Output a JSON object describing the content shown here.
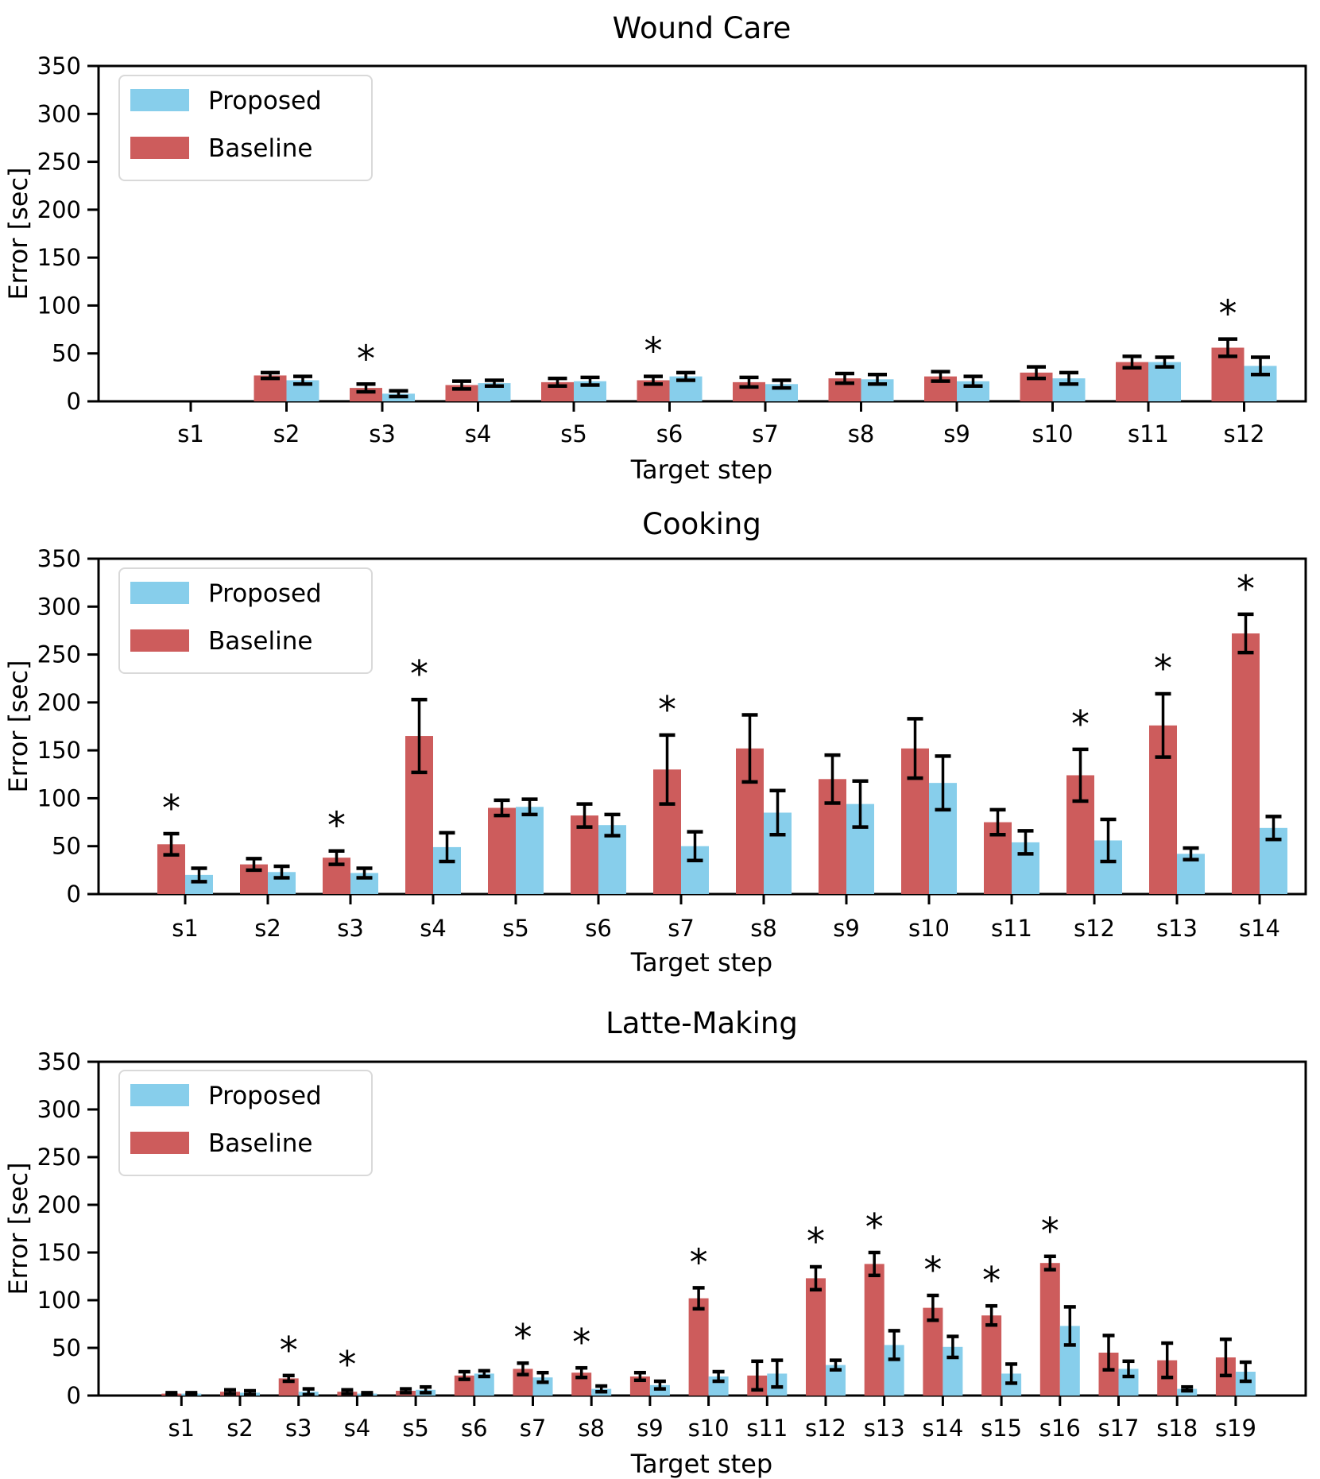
{
  "figure": {
    "ylabel": "Error [sec]",
    "xlabel": "Target step",
    "legend": {
      "proposed": "Proposed",
      "baseline": "Baseline"
    },
    "colors": {
      "proposed": "#87CEEB",
      "baseline": "#CD5C5C",
      "axis": "#000000"
    },
    "y_ticks": [
      0,
      50,
      100,
      150,
      200,
      250,
      300,
      350
    ],
    "significance_marker": "*"
  },
  "chart_data": [
    {
      "type": "bar",
      "title": "Wound Care",
      "xlabel": "Target step",
      "ylabel": "Error [sec]",
      "ylim": [
        0,
        350
      ],
      "grid": false,
      "legend_position": "upper left",
      "categories": [
        "s1",
        "s2",
        "s3",
        "s4",
        "s5",
        "s6",
        "s7",
        "s8",
        "s9",
        "s10",
        "s11",
        "s12"
      ],
      "series": [
        {
          "name": "Baseline",
          "color": "#CD5C5C",
          "values": [
            0,
            27,
            14,
            17,
            20,
            22,
            20,
            24,
            26,
            30,
            41,
            56
          ],
          "errors": [
            0,
            3,
            4,
            4,
            4,
            4,
            5,
            5,
            5,
            6,
            6,
            9
          ]
        },
        {
          "name": "Proposed",
          "color": "#87CEEB",
          "values": [
            0,
            22,
            8,
            19,
            21,
            26,
            18,
            23,
            21,
            24,
            41,
            37
          ],
          "errors": [
            0,
            4,
            3,
            3,
            4,
            4,
            4,
            5,
            5,
            6,
            5,
            9
          ]
        }
      ],
      "significant_steps": [
        "s3",
        "s6",
        "s12"
      ]
    },
    {
      "type": "bar",
      "title": "Cooking",
      "xlabel": "Target step",
      "ylabel": "Error [sec]",
      "ylim": [
        0,
        350
      ],
      "grid": false,
      "legend_position": "upper left",
      "categories": [
        "s1",
        "s2",
        "s3",
        "s4",
        "s5",
        "s6",
        "s7",
        "s8",
        "s9",
        "s10",
        "s11",
        "s12",
        "s13",
        "s14"
      ],
      "series": [
        {
          "name": "Baseline",
          "color": "#CD5C5C",
          "values": [
            52,
            31,
            38,
            165,
            90,
            82,
            130,
            152,
            120,
            152,
            75,
            124,
            176,
            272
          ],
          "errors": [
            11,
            6,
            7,
            38,
            8,
            12,
            36,
            35,
            25,
            31,
            13,
            27,
            33,
            20
          ]
        },
        {
          "name": "Proposed",
          "color": "#87CEEB",
          "values": [
            20,
            23,
            22,
            49,
            91,
            72,
            50,
            85,
            94,
            116,
            54,
            56,
            42,
            69
          ],
          "errors": [
            7,
            6,
            5,
            15,
            8,
            11,
            15,
            23,
            24,
            28,
            12,
            22,
            6,
            12
          ]
        }
      ],
      "significant_steps": [
        "s1",
        "s3",
        "s4",
        "s7",
        "s12",
        "s13",
        "s14"
      ]
    },
    {
      "type": "bar",
      "title": "Latte-Making",
      "xlabel": "Target step",
      "ylabel": "Error [sec]",
      "ylim": [
        0,
        350
      ],
      "grid": false,
      "legend_position": "upper left",
      "categories": [
        "s1",
        "s2",
        "s3",
        "s4",
        "s5",
        "s6",
        "s7",
        "s8",
        "s9",
        "s10",
        "s11",
        "s12",
        "s13",
        "s14",
        "s15",
        "s16",
        "s17",
        "s18",
        "s19"
      ],
      "series": [
        {
          "name": "Baseline",
          "color": "#CD5C5C",
          "values": [
            2,
            4,
            18,
            4,
            5,
            21,
            28,
            24,
            20,
            102,
            21,
            123,
            138,
            92,
            84,
            139,
            45,
            37,
            40
          ],
          "errors": [
            1,
            2,
            3,
            2,
            2,
            4,
            6,
            5,
            4,
            11,
            15,
            12,
            12,
            13,
            10,
            7,
            18,
            18,
            19
          ]
        },
        {
          "name": "Proposed",
          "color": "#87CEEB",
          "values": [
            2,
            3,
            4,
            2,
            6,
            23,
            19,
            7,
            11,
            20,
            23,
            32,
            53,
            51,
            23,
            73,
            28,
            7,
            25
          ],
          "errors": [
            1,
            2,
            3,
            1,
            3,
            3,
            5,
            3,
            4,
            5,
            14,
            5,
            15,
            11,
            10,
            20,
            8,
            2,
            10
          ]
        }
      ],
      "significant_steps": [
        "s3",
        "s4",
        "s7",
        "s8",
        "s10",
        "s12",
        "s13",
        "s14",
        "s15",
        "s16"
      ]
    }
  ]
}
